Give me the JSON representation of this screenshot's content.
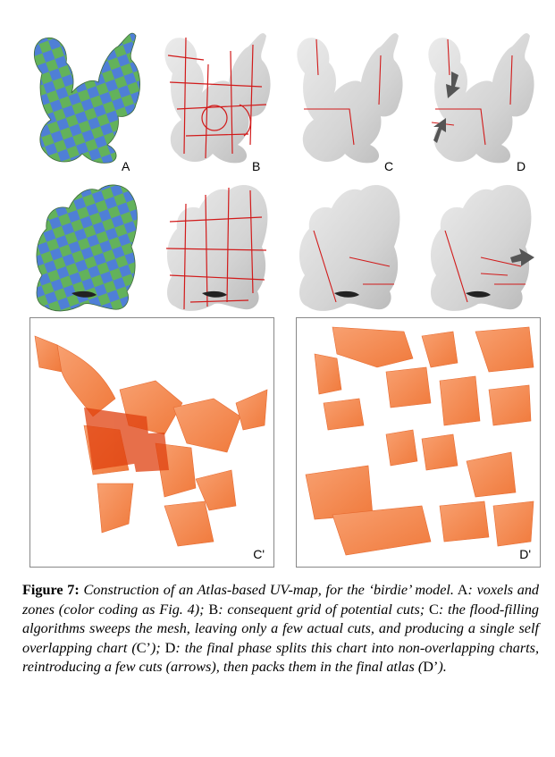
{
  "panels": {
    "A": "A",
    "B": "B",
    "C": "C",
    "D": "D",
    "C_prime": "C'",
    "D_prime": "D'"
  },
  "colors": {
    "checker_blue": "#4f7fd6",
    "checker_green": "#63b25b",
    "cut_red": "#d11a1a",
    "mesh_gray": "#d9d9d9",
    "atlas_orange": "#f5874f",
    "atlas_dark": "#e0400e",
    "arrow_gray": "#555555"
  },
  "icons": [
    "arrow-icon"
  ],
  "caption": {
    "label": "Figure 7:",
    "title": "Construction of an Atlas-based UV-map, for the ‘birdie’ model.",
    "a_key": "A",
    "a_text": ": voxels and zones (color coding as Fig. 4);",
    "b_key": "B",
    "b_text": ": consequent grid of potential cuts;",
    "c_key": "C",
    "c_text": ": the flood-filling algorithms sweeps the mesh, leaving only a few actual cuts, and producing a single self overlapping chart (",
    "c_ref": "C’",
    "c_tail": ");",
    "d_key": "D",
    "d_text": ": the final phase splits this chart into non-overlapping charts, reintroducing a few cuts (arrows), then packs them in the final atlas (",
    "d_ref": "D’",
    "d_tail": ")."
  }
}
